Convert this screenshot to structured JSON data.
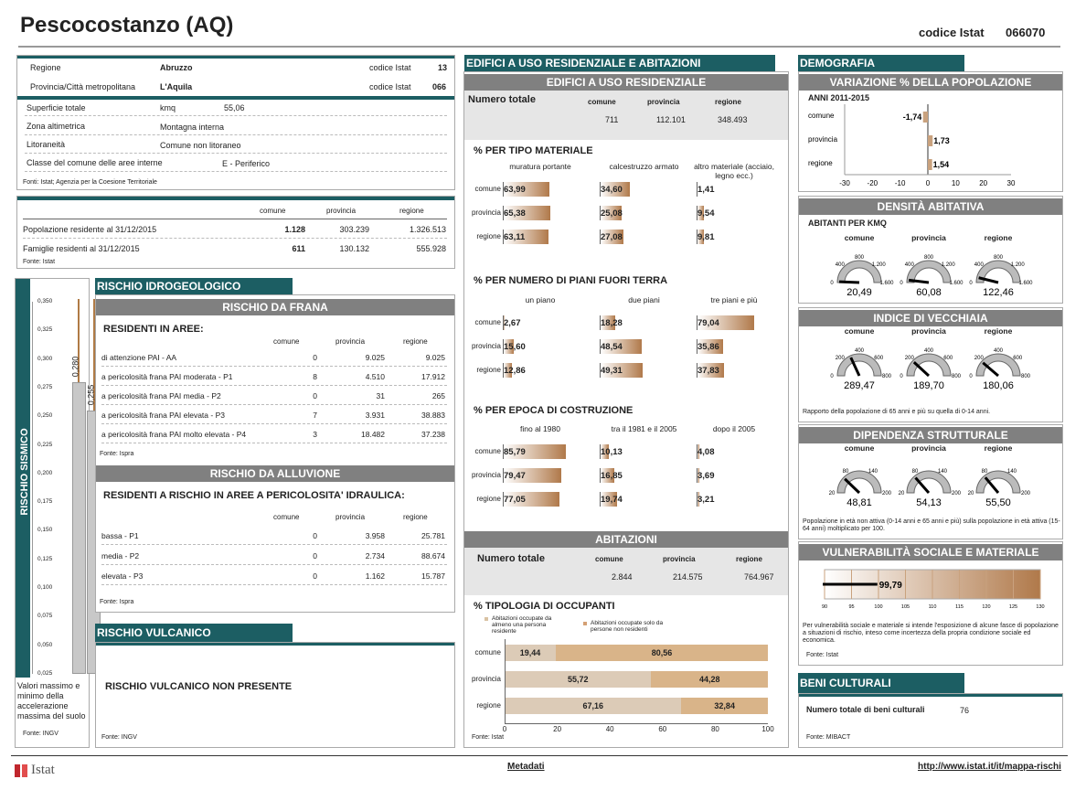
{
  "header": {
    "title": "Pescocostanzo (AQ)",
    "codice_label": "codice Istat",
    "codice_value": "066070"
  },
  "info": {
    "regione_label": "Regione",
    "regione": "Abruzzo",
    "regione_cod_label": "codice Istat",
    "regione_cod": "13",
    "prov_label": "Provincia/Città metropolitana",
    "prov": "L'Aquila",
    "prov_cod_label": "codice Istat",
    "prov_cod": "066",
    "sup_label": "Superficie totale",
    "sup_unit": "kmq",
    "sup": "55,06",
    "zona_label": "Zona altimetrica",
    "zona": "Montagna interna",
    "lit_label": "Litoraneità",
    "lit": "Comune non litoraneo",
    "classe_label": "Classe del comune delle aree interne",
    "classe": "E - Periferico",
    "fonte": "Fonti: Istat; Agenzia per la Coesione Territoriale"
  },
  "pop": {
    "h1": "comune",
    "h2": "provincia",
    "h3": "regione",
    "r1": "Popolazione residente al 31/12/2015",
    "r1a": "1.128",
    "r1b": "303.239",
    "r1c": "1.326.513",
    "r2": "Famiglie residenti al 31/12/2015",
    "r2a": "611",
    "r2b": "130.132",
    "r2c": "555.928",
    "fonte": "Fonte: Istat"
  },
  "sismico": {
    "title": "RISCHIO SISMICO",
    "ticks": [
      "0,350",
      "0,325",
      "0,300",
      "0,275",
      "0,250",
      "0,225",
      "0,200",
      "0,175",
      "0,150",
      "0,125",
      "0,100",
      "0,075",
      "0,050",
      "0,025"
    ],
    "max": 0.28,
    "min": 0.255,
    "max_lbl": "0,280",
    "min_lbl": "0,255",
    "note": "Valori massimo e minimo della accelerazione massima del suolo",
    "fonte": "Fonte: INGV"
  },
  "idro": {
    "title": "RISCHIO IDROGEOLOGICO",
    "frana": "RISCHIO DA FRANA",
    "res": "RESIDENTI IN AREE:",
    "h1": "comune",
    "h2": "provincia",
    "h3": "regione",
    "rows": [
      [
        "di attenzione PAI - AA",
        "0",
        "9.025",
        "9.025"
      ],
      [
        "a pericolosità frana PAI moderata - P1",
        "8",
        "4.510",
        "17.912"
      ],
      [
        "a pericolosità frana PAI media - P2",
        "0",
        "31",
        "265"
      ],
      [
        "a pericolosità frana PAI elevata - P3",
        "7",
        "3.931",
        "38.883"
      ],
      [
        "a pericolosità frana PAI molto elevata - P4",
        "3",
        "18.482",
        "37.238"
      ]
    ],
    "fonte": "Fonte: Ispra",
    "alluv": "RISCHIO DA ALLUVIONE",
    "alluv_sub": "RESIDENTI A RISCHIO IN AREE A PERICOLOSITA' IDRAULICA:",
    "arows": [
      [
        "bassa - P1",
        "0",
        "3.958",
        "25.781"
      ],
      [
        "media - P2",
        "0",
        "2.734",
        "88.674"
      ],
      [
        "elevata - P3",
        "0",
        "1.162",
        "15.787"
      ]
    ],
    "fonte2": "Fonte: Ispra"
  },
  "vulc": {
    "title": "RISCHIO VULCANICO",
    "text": "RISCHIO VULCANICO NON PRESENTE",
    "fonte": "Fonte: INGV"
  },
  "edif": {
    "title": "EDIFICI A USO RESIDENZIALE E ABITAZIONI",
    "sub": "EDIFICI A USO RESIDENZIALE",
    "num": "Numero totale",
    "h1": "comune",
    "h2": "provincia",
    "h3": "regione",
    "v1": "711",
    "v2": "112.101",
    "v3": "348.493",
    "mat_title": "% PER TIPO MATERIALE",
    "mat_cols": [
      "muratura portante",
      "calcestruzzo armato",
      "altro materiale (acciaio, legno ecc.)"
    ],
    "rowlbl": [
      "comune",
      "provincia",
      "regione"
    ],
    "mat": [
      [
        63.99,
        34.6,
        1.41
      ],
      [
        65.38,
        25.08,
        9.54
      ],
      [
        63.11,
        27.08,
        9.81
      ]
    ],
    "mat_l": [
      [
        "63,99",
        "34,60",
        "1,41"
      ],
      [
        "65,38",
        "25,08",
        "9,54"
      ],
      [
        "63,11",
        "27,08",
        "9,81"
      ]
    ],
    "piani_title": "% PER NUMERO DI PIANI FUORI TERRA",
    "piani_cols": [
      "un piano",
      "due piani",
      "tre piani e più"
    ],
    "piani": [
      [
        2.67,
        18.28,
        79.04
      ],
      [
        15.6,
        48.54,
        35.86
      ],
      [
        12.86,
        49.31,
        37.83
      ]
    ],
    "piani_l": [
      [
        "2,67",
        "18,28",
        "79,04"
      ],
      [
        "15,60",
        "48,54",
        "35,86"
      ],
      [
        "12,86",
        "49,31",
        "37,83"
      ]
    ],
    "epoca_title": "% PER EPOCA DI COSTRUZIONE",
    "epoca_cols": [
      "fino al 1980",
      "tra il 1981 e il 2005",
      "dopo il 2005"
    ],
    "epoca": [
      [
        85.79,
        10.13,
        4.08
      ],
      [
        79.47,
        16.85,
        3.69
      ],
      [
        77.05,
        19.74,
        3.21
      ]
    ],
    "epoca_l": [
      [
        "85,79",
        "10,13",
        "4,08"
      ],
      [
        "79,47",
        "16,85",
        "3,69"
      ],
      [
        "77,05",
        "19,74",
        "3,21"
      ]
    ],
    "abit": "ABITAZIONI",
    "a1": "2.844",
    "a2": "214.575",
    "a3": "764.967",
    "tip_title": "% TIPOLOGIA DI OCCUPANTI",
    "leg1": "Abitazioni occupate da almeno una persona residente",
    "leg2": "Abitazioni occupate solo da persone non residenti",
    "tip": [
      [
        19.44,
        80.56
      ],
      [
        55.72,
        44.28
      ],
      [
        67.16,
        32.84
      ]
    ],
    "tip_l": [
      [
        "19,44",
        "80,56"
      ],
      [
        "55,72",
        "44,28"
      ],
      [
        "67,16",
        "32,84"
      ]
    ],
    "xticks": [
      "0",
      "20",
      "40",
      "60",
      "80",
      "100"
    ],
    "fonte": "Fonte: Istat"
  },
  "demo": {
    "title": "DEMOGRAFIA",
    "var_title": "VARIAZIONE % DELLA POPOLAZIONE",
    "anni": "ANNI 2011-2015",
    "rows": [
      "comune",
      "provincia",
      "regione"
    ],
    "var": [
      -1.74,
      1.73,
      1.54
    ],
    "var_l": [
      "-1,74",
      "1,73",
      "1,54"
    ],
    "xticks": [
      "-30",
      "-20",
      "-10",
      "0",
      "10",
      "20",
      "30"
    ],
    "dens_title": "DENSITÀ  ABITATIVA",
    "dens_sub": "ABITANTI PER KMQ",
    "cols": [
      "comune",
      "provincia",
      "regione"
    ],
    "dens": [
      20.49,
      60.08,
      122.46
    ],
    "dens_l": [
      "20,49",
      "60,08",
      "122,46"
    ],
    "dens_ticks": [
      "0",
      "400",
      "800",
      "1.200",
      "1.600"
    ],
    "vec_title": "INDICE DI VECCHIAIA",
    "vec": [
      289.47,
      189.7,
      180.06
    ],
    "vec_l": [
      "289,47",
      "189,70",
      "180,06"
    ],
    "vec_ticks": [
      "0",
      "200",
      "400",
      "600",
      "800"
    ],
    "vec_note": "Rapporto della popolazione di 65 anni e più su quella di 0-14 anni.",
    "dip_title": "DIPENDENZA STRUTTURALE",
    "dip": [
      48.81,
      54.13,
      55.5
    ],
    "dip_l": [
      "48,81",
      "54,13",
      "55,50"
    ],
    "dip_ticks": [
      "20",
      "80",
      "140",
      "200"
    ],
    "dip_note": "Popolazione in età non attiva (0-14 anni e 65 anni e più) sulla popolazione in età attiva (15-64 anni) moltiplicato per 100.",
    "vul_title": "VULNERABILITÀ  SOCIALE E MATERIALE",
    "vul": 99.79,
    "vul_l": "99,79",
    "vul_ticks": [
      "90",
      "95",
      "100",
      "105",
      "110",
      "115",
      "120",
      "125",
      "130"
    ],
    "vul_note": "Per vulnerabilità sociale e materiale si intende l'esposizione di alcune fasce di popolazione a situazioni di rischio, inteso come incertezza della propria condizione sociale ed economica.",
    "fonte": "Fonte: Istat"
  },
  "beni": {
    "title": "BENI CULTURALI",
    "label": "Numero totale di beni culturali",
    "value": "76",
    "fonte": "Fonte: MIBACT"
  },
  "footer": {
    "logo": "Istat",
    "meta": "Metadati",
    "url": "http://www.istat.it/it/mappa-rischi"
  }
}
